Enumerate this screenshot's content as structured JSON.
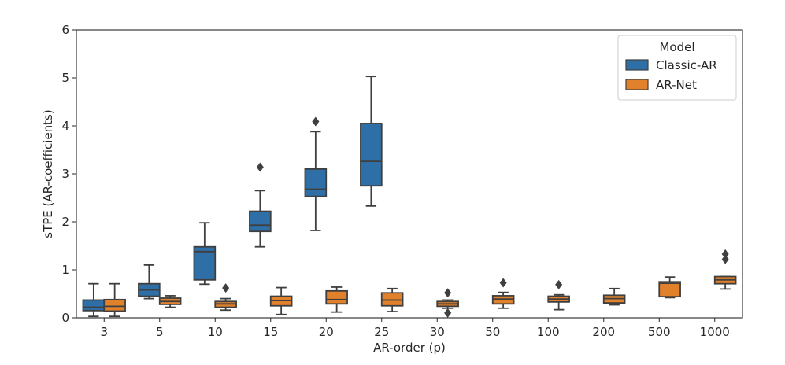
{
  "chart_data": {
    "type": "boxplot",
    "xlabel": "AR-order (p)",
    "ylabel": "sTPE (AR-coefficients)",
    "ylim": [
      0,
      6
    ],
    "yticks": [
      0,
      1,
      2,
      3,
      4,
      5,
      6
    ],
    "categories": [
      "3",
      "5",
      "10",
      "15",
      "20",
      "25",
      "30",
      "50",
      "100",
      "200",
      "500",
      "1000"
    ],
    "legend": {
      "title": "Model",
      "position": "top-right"
    },
    "series": [
      {
        "name": "Classic-AR",
        "color": "#2f6fa7",
        "boxes": [
          {
            "category": "3",
            "whislo": 0.03,
            "q1": 0.15,
            "med": 0.22,
            "q3": 0.37,
            "whishi": 0.71,
            "fliers": []
          },
          {
            "category": "5",
            "whislo": 0.4,
            "q1": 0.45,
            "med": 0.58,
            "q3": 0.71,
            "whishi": 1.1,
            "fliers": []
          },
          {
            "category": "10",
            "whislo": 0.7,
            "q1": 0.79,
            "med": 1.38,
            "q3": 1.48,
            "whishi": 1.98,
            "fliers": []
          },
          {
            "category": "15",
            "whislo": 1.48,
            "q1": 1.8,
            "med": 1.93,
            "q3": 2.22,
            "whishi": 2.65,
            "fliers": [
              3.14
            ]
          },
          {
            "category": "20",
            "whislo": 1.82,
            "q1": 2.53,
            "med": 2.68,
            "q3": 3.1,
            "whishi": 3.88,
            "fliers": [
              4.09
            ]
          },
          {
            "category": "25",
            "whislo": 2.33,
            "q1": 2.75,
            "med": 3.26,
            "q3": 4.05,
            "whishi": 5.03,
            "fliers": []
          }
        ]
      },
      {
        "name": "AR-Net",
        "color": "#e1812c",
        "boxes": [
          {
            "category": "3",
            "whislo": 0.03,
            "q1": 0.14,
            "med": 0.24,
            "q3": 0.38,
            "whishi": 0.71,
            "fliers": []
          },
          {
            "category": "5",
            "whislo": 0.22,
            "q1": 0.28,
            "med": 0.34,
            "q3": 0.41,
            "whishi": 0.46,
            "fliers": []
          },
          {
            "category": "10",
            "whislo": 0.16,
            "q1": 0.22,
            "med": 0.29,
            "q3": 0.34,
            "whishi": 0.4,
            "fliers": [
              0.62
            ]
          },
          {
            "category": "15",
            "whislo": 0.07,
            "q1": 0.25,
            "med": 0.36,
            "q3": 0.45,
            "whishi": 0.63,
            "fliers": []
          },
          {
            "category": "20",
            "whislo": 0.12,
            "q1": 0.29,
            "med": 0.38,
            "q3": 0.56,
            "whishi": 0.64,
            "fliers": []
          },
          {
            "category": "25",
            "whislo": 0.13,
            "q1": 0.25,
            "med": 0.37,
            "q3": 0.52,
            "whishi": 0.61,
            "fliers": []
          },
          {
            "category": "30",
            "whislo": 0.2,
            "q1": 0.24,
            "med": 0.29,
            "q3": 0.34,
            "whishi": 0.37,
            "fliers": [
              0.52,
              0.1
            ]
          },
          {
            "category": "50",
            "whislo": 0.2,
            "q1": 0.29,
            "med": 0.39,
            "q3": 0.46,
            "whishi": 0.53,
            "fliers": [
              0.73
            ]
          },
          {
            "category": "100",
            "whislo": 0.17,
            "q1": 0.33,
            "med": 0.39,
            "q3": 0.45,
            "whishi": 0.48,
            "fliers": [
              0.69
            ]
          },
          {
            "category": "200",
            "whislo": 0.27,
            "q1": 0.31,
            "med": 0.4,
            "q3": 0.47,
            "whishi": 0.61,
            "fliers": []
          },
          {
            "category": "500",
            "whislo": 0.42,
            "q1": 0.44,
            "med": 0.72,
            "q3": 0.75,
            "whishi": 0.85,
            "fliers": []
          },
          {
            "category": "1000",
            "whislo": 0.6,
            "q1": 0.71,
            "med": 0.79,
            "q3": 0.86,
            "whishi": 0.86,
            "fliers": [
              1.22,
              1.33
            ]
          }
        ]
      }
    ]
  }
}
